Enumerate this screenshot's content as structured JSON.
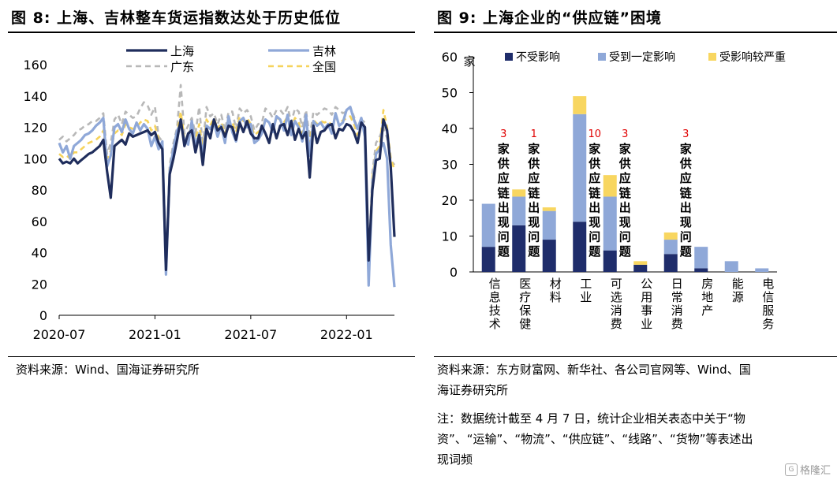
{
  "left": {
    "title": "图 8:  上海、吉林整车货运指数达处于历史低位",
    "source": "资料来源：Wind、国海证券研究所",
    "chart_data": {
      "type": "line",
      "ylim": [
        0,
        160
      ],
      "yticks": [
        0,
        20,
        40,
        60,
        80,
        100,
        120,
        140,
        160
      ],
      "xticks": [
        {
          "label": "2020-07",
          "week": 0
        },
        {
          "label": "2021-01",
          "week": 26
        },
        {
          "label": "2021-07",
          "week": 52
        },
        {
          "label": "2022-01",
          "week": 78
        }
      ],
      "weeks": 91,
      "legend": [
        "上海",
        "吉林",
        "广东",
        "全国"
      ],
      "series": [
        {
          "name": "上海",
          "color": "#1f2d5c",
          "width": 3.2,
          "dash": "",
          "values": [
            100,
            97,
            98,
            97,
            100,
            97,
            99,
            101,
            103,
            104,
            106,
            108,
            112,
            92,
            75,
            108,
            110,
            112,
            109,
            116,
            114,
            115,
            116,
            117,
            118,
            115,
            117,
            110,
            106,
            29,
            90,
            100,
            112,
            125,
            108,
            116,
            118,
            104,
            115,
            96,
            119,
            113,
            125,
            118,
            120,
            114,
            121,
            120,
            112,
            123,
            117,
            124,
            116,
            113,
            113,
            121,
            116,
            110,
            122,
            113,
            121,
            122,
            115,
            124,
            112,
            119,
            113,
            117,
            88,
            121,
            110,
            117,
            118,
            121,
            122,
            113,
            119,
            118,
            122,
            121,
            117,
            110,
            123,
            120,
            35,
            80,
            99,
            100,
            125,
            118,
            95,
            50
          ]
        },
        {
          "name": "吉林",
          "color": "#8fa8d8",
          "width": 3.2,
          "dash": "",
          "values": [
            110,
            104,
            108,
            100,
            108,
            110,
            112,
            115,
            116,
            118,
            121,
            123,
            126,
            95,
            102,
            120,
            122,
            117,
            125,
            119,
            116,
            123,
            118,
            122,
            119,
            108,
            114,
            106,
            111,
            26,
            92,
            106,
            118,
            122,
            112,
            109,
            124,
            108,
            116,
            103,
            121,
            119,
            123,
            114,
            121,
            110,
            127,
            117,
            111,
            124,
            126,
            120,
            122,
            110,
            112,
            116,
            125,
            123,
            117,
            127,
            125,
            118,
            128,
            115,
            124,
            120,
            111,
            128,
            102,
            124,
            121,
            123,
            119,
            122,
            116,
            129,
            121,
            123,
            131,
            133,
            125,
            119,
            126,
            114,
            19,
            83,
            103,
            106,
            110,
            100,
            45,
            18
          ]
        },
        {
          "name": "广东",
          "color": "#b8b8b8",
          "width": 2.6,
          "dash": "7,5",
          "values": [
            112,
            114,
            111,
            113,
            115,
            118,
            119,
            121,
            122,
            124,
            124,
            126,
            129,
            103,
            110,
            125,
            128,
            122,
            130,
            128,
            126,
            127,
            132,
            136,
            134,
            128,
            133,
            114,
            111,
            28,
            96,
            110,
            120,
            147,
            116,
            121,
            126,
            116,
            133,
            108,
            133,
            127,
            129,
            122,
            128,
            118,
            130,
            130,
            119,
            132,
            129,
            131,
            127,
            118,
            122,
            123,
            132,
            130,
            126,
            131,
            131,
            128,
            133,
            123,
            132,
            130,
            120,
            131,
            113,
            130,
            128,
            130,
            132,
            131,
            128,
            133,
            131,
            129,
            130,
            133,
            127,
            118,
            125,
            123,
            30,
            91,
            110,
            114,
            120,
            113,
            99,
            96
          ]
        },
        {
          "name": "全国",
          "color": "#f6d35c",
          "width": 2.6,
          "dash": "7,5",
          "values": [
            103,
            101,
            102,
            100,
            104,
            104,
            106,
            108,
            110,
            111,
            112,
            114,
            118,
            100,
            105,
            116,
            118,
            115,
            122,
            120,
            119,
            120,
            123,
            125,
            124,
            118,
            121,
            112,
            110,
            28,
            94,
            105,
            116,
            130,
            113,
            115,
            121,
            112,
            122,
            106,
            125,
            121,
            126,
            119,
            123,
            116,
            124,
            123,
            117,
            127,
            124,
            126,
            122,
            115,
            117,
            119,
            125,
            123,
            120,
            126,
            125,
            123,
            127,
            119,
            126,
            123,
            116,
            125,
            110,
            125,
            122,
            124,
            123,
            124,
            121,
            126,
            125,
            124,
            126,
            127,
            122,
            115,
            122,
            119,
            28,
            88,
            105,
            108,
            131,
            120,
            100,
            93
          ]
        }
      ]
    }
  },
  "right": {
    "title": "图 9:  上海企业的“供应链”困境",
    "source_line1": "资料来源：东方财富网、新华社、各公司官网等、Wind、国",
    "source_line2": "海证券研究所",
    "note_line1": "注：数据统计截至 4 月 7 日，统计企业相关表态中关于“物",
    "note_line2": "资”、“运输”、“物流”、“供应链”、“线路”、“货物”等表述出",
    "note_line3": "现词频",
    "chart_data": {
      "type": "bar",
      "stacked": true,
      "ylabel": "家",
      "ylim": [
        0,
        60
      ],
      "yticks": [
        0,
        10,
        20,
        30,
        40,
        50,
        60
      ],
      "categories": [
        "信息技术",
        "医疗保健",
        "材料",
        "工业",
        "可选消费",
        "公用事业",
        "日常消费",
        "房地产",
        "能源",
        "电信服务"
      ],
      "series": [
        {
          "name": "不受影响",
          "color": "#1f2d6b",
          "values": [
            7,
            13,
            9,
            14,
            6,
            2,
            5,
            1,
            0,
            0
          ]
        },
        {
          "name": "受到一定影响",
          "color": "#8fa8d8",
          "values": [
            12,
            8,
            8,
            30,
            15,
            0,
            4,
            6,
            3,
            1
          ]
        },
        {
          "name": "受影响较严重",
          "color": "#f8d660",
          "values": [
            0,
            2,
            1,
            5,
            6,
            1,
            2,
            0,
            0,
            0
          ]
        }
      ],
      "annotations": [
        {
          "category_index": 0,
          "number": "3",
          "text": "家供应链出现问题"
        },
        {
          "category_index": 1,
          "number": "1",
          "text": "家供应链出现问题"
        },
        {
          "category_index": 3,
          "number": "10",
          "text": "家供应链出现问题"
        },
        {
          "category_index": 4,
          "number": "3",
          "text": "家供应链出现问题"
        },
        {
          "category_index": 6,
          "number": "3",
          "text": "家供应链出现问题"
        }
      ]
    }
  },
  "watermark": "格隆汇"
}
